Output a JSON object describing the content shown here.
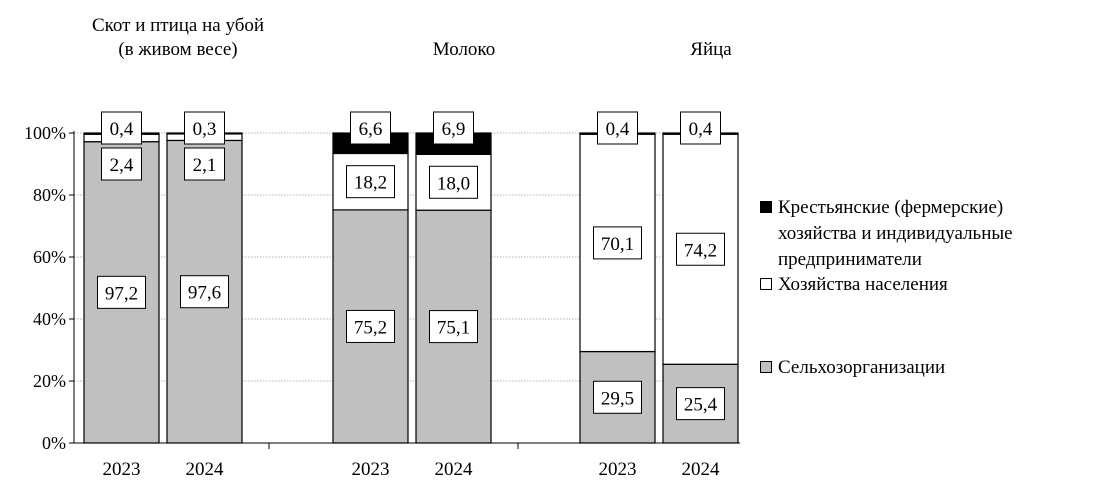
{
  "chart_data": {
    "type": "bar",
    "stacked": true,
    "groups": [
      {
        "title": "Скот и птица на убой (в живом весе)",
        "title_lines": [
          "Скот и птица на убой",
          "(в живом весе)"
        ],
        "years": [
          "2023",
          "2024"
        ],
        "bars": [
          {
            "year": "2023",
            "values": [
              97.2,
              2.4,
              0.4
            ],
            "labels": [
              "97,2",
              "2,4",
              "0,4"
            ]
          },
          {
            "year": "2024",
            "values": [
              97.6,
              2.1,
              0.3
            ],
            "labels": [
              "97,6",
              "2,1",
              "0,3"
            ]
          }
        ]
      },
      {
        "title": "Молоко",
        "title_lines": [
          "Молоко"
        ],
        "years": [
          "2023",
          "2024"
        ],
        "bars": [
          {
            "year": "2023",
            "values": [
              75.2,
              18.2,
              6.6
            ],
            "labels": [
              "75,2",
              "18,2",
              "6,6"
            ]
          },
          {
            "year": "2024",
            "values": [
              75.1,
              18.0,
              6.9
            ],
            "labels": [
              "75,1",
              "18,0",
              "6,9"
            ]
          }
        ]
      },
      {
        "title": "Яйца",
        "title_lines": [
          "Яйца"
        ],
        "years": [
          "2023",
          "2024"
        ],
        "bars": [
          {
            "year": "2023",
            "values": [
              29.5,
              70.1,
              0.4
            ],
            "labels": [
              "29,5",
              "70,1",
              "0,4"
            ]
          },
          {
            "year": "2024",
            "values": [
              25.4,
              74.2,
              0.4
            ],
            "labels": [
              "25,4",
              "74,2",
              "0,4"
            ]
          }
        ]
      }
    ],
    "series": [
      {
        "name": "Сельхозорганизации",
        "color": "#c0c0c0"
      },
      {
        "name": "Хозяйства населения",
        "color": "#ffffff"
      },
      {
        "name": "Крестьянские (фермерские) хозяйства и индивидуальные предприниматели",
        "name_lines": [
          "Крестьянские (фермерские)",
          "хозяйства и индивидуальные",
          "предприниматели"
        ],
        "color": "#000000"
      }
    ],
    "yaxis": {
      "ticks": [
        "0%",
        "20%",
        "40%",
        "60%",
        "80%",
        "100%"
      ],
      "ylim": [
        0,
        100
      ]
    },
    "grid": true,
    "legend_position": "right"
  }
}
